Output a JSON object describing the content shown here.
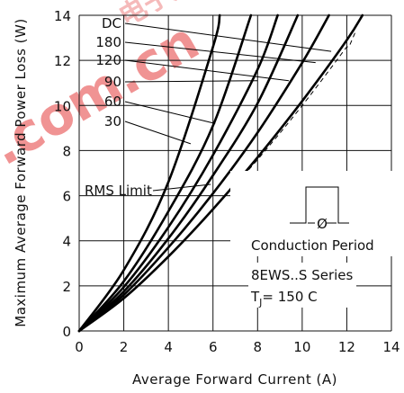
{
  "chart_data": {
    "type": "line",
    "xlabel": "Average Forward Current (A)",
    "ylabel": "Maximum Average Forward Power Loss (W)",
    "xlim": [
      0,
      14
    ],
    "ylim": [
      0,
      14
    ],
    "xticks": [
      "0",
      "2",
      "4",
      "6",
      "8",
      "10",
      "12",
      "14"
    ],
    "yticks": [
      "0",
      "2",
      "4",
      "6",
      "8",
      "10",
      "12",
      "14"
    ],
    "grid": true,
    "series": [
      {
        "name": "DC",
        "x": [
          0,
          2,
          4,
          6,
          8,
          10,
          12,
          12.7
        ],
        "y": [
          0,
          1.45,
          3.3,
          5.4,
          7.7,
          10.2,
          12.9,
          14
        ]
      },
      {
        "name": "180",
        "x": [
          0,
          2,
          4,
          6,
          8,
          10,
          11.2
        ],
        "y": [
          0,
          1.6,
          3.7,
          6.1,
          8.8,
          11.9,
          14
        ]
      },
      {
        "name": "120",
        "x": [
          0,
          2,
          4,
          6,
          8,
          9.8
        ],
        "y": [
          0,
          1.75,
          4.1,
          6.9,
          10.1,
          14
        ]
      },
      {
        "name": "90",
        "x": [
          0,
          2,
          4,
          6,
          8,
          8.9
        ],
        "y": [
          0,
          1.95,
          4.6,
          7.8,
          11.6,
          14
        ]
      },
      {
        "name": "60",
        "x": [
          0,
          2,
          4,
          6,
          7.7
        ],
        "y": [
          0,
          2.2,
          5.3,
          9.1,
          14
        ]
      },
      {
        "name": "30",
        "x": [
          0,
          2,
          4,
          6,
          6.3
        ],
        "y": [
          0,
          2.7,
          6.6,
          12.6,
          14
        ]
      }
    ],
    "rms_limit": {
      "label": "RMS Limit",
      "x": [
        0,
        2,
        4,
        6,
        8,
        10,
        12,
        12.0
      ],
      "y": [
        0,
        1.45,
        3.3,
        5.4,
        7.6,
        10.0,
        12.6,
        12.6
      ]
    },
    "annotations": {
      "conduction": "Conduction Period",
      "phi": "Ø",
      "series_name": "8EWS..S Series",
      "tj_prefix": "T",
      "tj_sub": "J",
      "tj_value": "= 150 C"
    }
  },
  "watermark": {
    "text": ".com.cn",
    "cjk": "电子方法都"
  }
}
